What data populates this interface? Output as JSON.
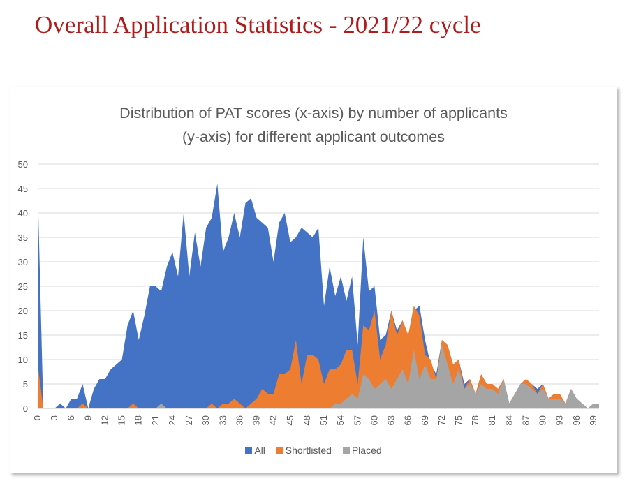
{
  "page": {
    "heading": "Overall Application Statistics - 2021/22 cycle",
    "heading_color": "#b01c1c"
  },
  "chart_data": {
    "type": "area",
    "title_lines": [
      "Distribution of PAT scores (x-axis) by number of applicants",
      "(y-axis) for different applicant outcomes"
    ],
    "xlabel": "",
    "ylabel": "",
    "xlim": [
      0,
      100
    ],
    "ylim": [
      0,
      50
    ],
    "y_ticks": [
      0,
      5,
      10,
      15,
      20,
      25,
      30,
      35,
      40,
      45,
      50
    ],
    "x_ticks": [
      0,
      3,
      6,
      9,
      12,
      15,
      18,
      21,
      24,
      27,
      30,
      33,
      36,
      39,
      42,
      45,
      48,
      51,
      54,
      57,
      60,
      63,
      66,
      69,
      72,
      75,
      78,
      81,
      84,
      87,
      90,
      93,
      96,
      99
    ],
    "grid": "horizontal",
    "legend_position": "bottom",
    "x": [
      0,
      1,
      2,
      3,
      4,
      5,
      6,
      7,
      8,
      9,
      10,
      11,
      12,
      13,
      14,
      15,
      16,
      17,
      18,
      19,
      20,
      21,
      22,
      23,
      24,
      25,
      26,
      27,
      28,
      29,
      30,
      31,
      32,
      33,
      34,
      35,
      36,
      37,
      38,
      39,
      40,
      41,
      42,
      43,
      44,
      45,
      46,
      47,
      48,
      49,
      50,
      51,
      52,
      53,
      54,
      55,
      56,
      57,
      58,
      59,
      60,
      61,
      62,
      63,
      64,
      65,
      66,
      67,
      68,
      69,
      70,
      71,
      72,
      73,
      74,
      75,
      76,
      77,
      78,
      79,
      80,
      81,
      82,
      83,
      84,
      85,
      86,
      87,
      88,
      89,
      90,
      91,
      92,
      93,
      94,
      95,
      96,
      97,
      98,
      99,
      100
    ],
    "series": [
      {
        "name": "All",
        "color": "#4472c4",
        "values": [
          45,
          0,
          0,
          0,
          1,
          0,
          2,
          2,
          5,
          0,
          4,
          6,
          6,
          8,
          9,
          10,
          17,
          20,
          14,
          19,
          25,
          25,
          24,
          29,
          32,
          27,
          40,
          27,
          36,
          29,
          37,
          39,
          46,
          32,
          35,
          40,
          35,
          42,
          43,
          39,
          38,
          37,
          30,
          38,
          40,
          34,
          35,
          37,
          36,
          35,
          37,
          21,
          29,
          23,
          27,
          22,
          27,
          13,
          35,
          24,
          25,
          14,
          15,
          20,
          16,
          18,
          15,
          20,
          21,
          14,
          9,
          7,
          14,
          13,
          9,
          10,
          5,
          6,
          3,
          7,
          5,
          5,
          4,
          6,
          1,
          3,
          5,
          6,
          5,
          4,
          5,
          2,
          3,
          3,
          1,
          4,
          2,
          1,
          0,
          1,
          1
        ]
      },
      {
        "name": "Shortlisted",
        "color": "#ed7d31",
        "values": [
          9,
          0,
          0,
          0,
          0,
          0,
          0,
          0,
          1,
          0,
          0,
          0,
          0,
          0,
          0,
          0,
          0,
          1,
          0,
          0,
          0,
          0,
          0,
          0,
          0,
          0,
          0,
          0,
          0,
          0,
          0,
          1,
          0,
          1,
          1,
          2,
          1,
          0,
          1,
          2,
          4,
          3,
          3,
          7,
          7,
          8,
          14,
          5,
          11,
          11,
          10,
          5,
          8,
          8,
          9,
          12,
          12,
          5,
          17,
          16,
          20,
          10,
          13,
          20,
          15,
          18,
          15,
          21,
          19,
          11,
          10,
          6,
          14,
          13,
          9,
          10,
          4,
          6,
          3,
          7,
          5,
          5,
          4,
          6,
          1,
          3,
          5,
          6,
          5,
          3,
          5,
          2,
          3,
          3,
          1,
          4,
          2,
          1,
          0,
          1,
          1
        ]
      },
      {
        "name": "Placed",
        "color": "#a5a5a5",
        "values": [
          0,
          0,
          0,
          0,
          0,
          0,
          0,
          0,
          0,
          0,
          0,
          0,
          0,
          0,
          0,
          0,
          0,
          0,
          0,
          0,
          0,
          0,
          1,
          0,
          0,
          0,
          0,
          0,
          0,
          0,
          0,
          0,
          0,
          0,
          0,
          0,
          0,
          0,
          0,
          0,
          0,
          0,
          0,
          0,
          0,
          0,
          0,
          0,
          0,
          0,
          0,
          0,
          0,
          1,
          1,
          2,
          3,
          2,
          7,
          6,
          4,
          5,
          6,
          4,
          6,
          8,
          5,
          12,
          6,
          9,
          6,
          6,
          13,
          9,
          5,
          8,
          4,
          5,
          3,
          5,
          4,
          4,
          3,
          6,
          1,
          3,
          5,
          5,
          4,
          3,
          4,
          2,
          2,
          2,
          1,
          4,
          2,
          1,
          0,
          1,
          1
        ]
      }
    ]
  }
}
